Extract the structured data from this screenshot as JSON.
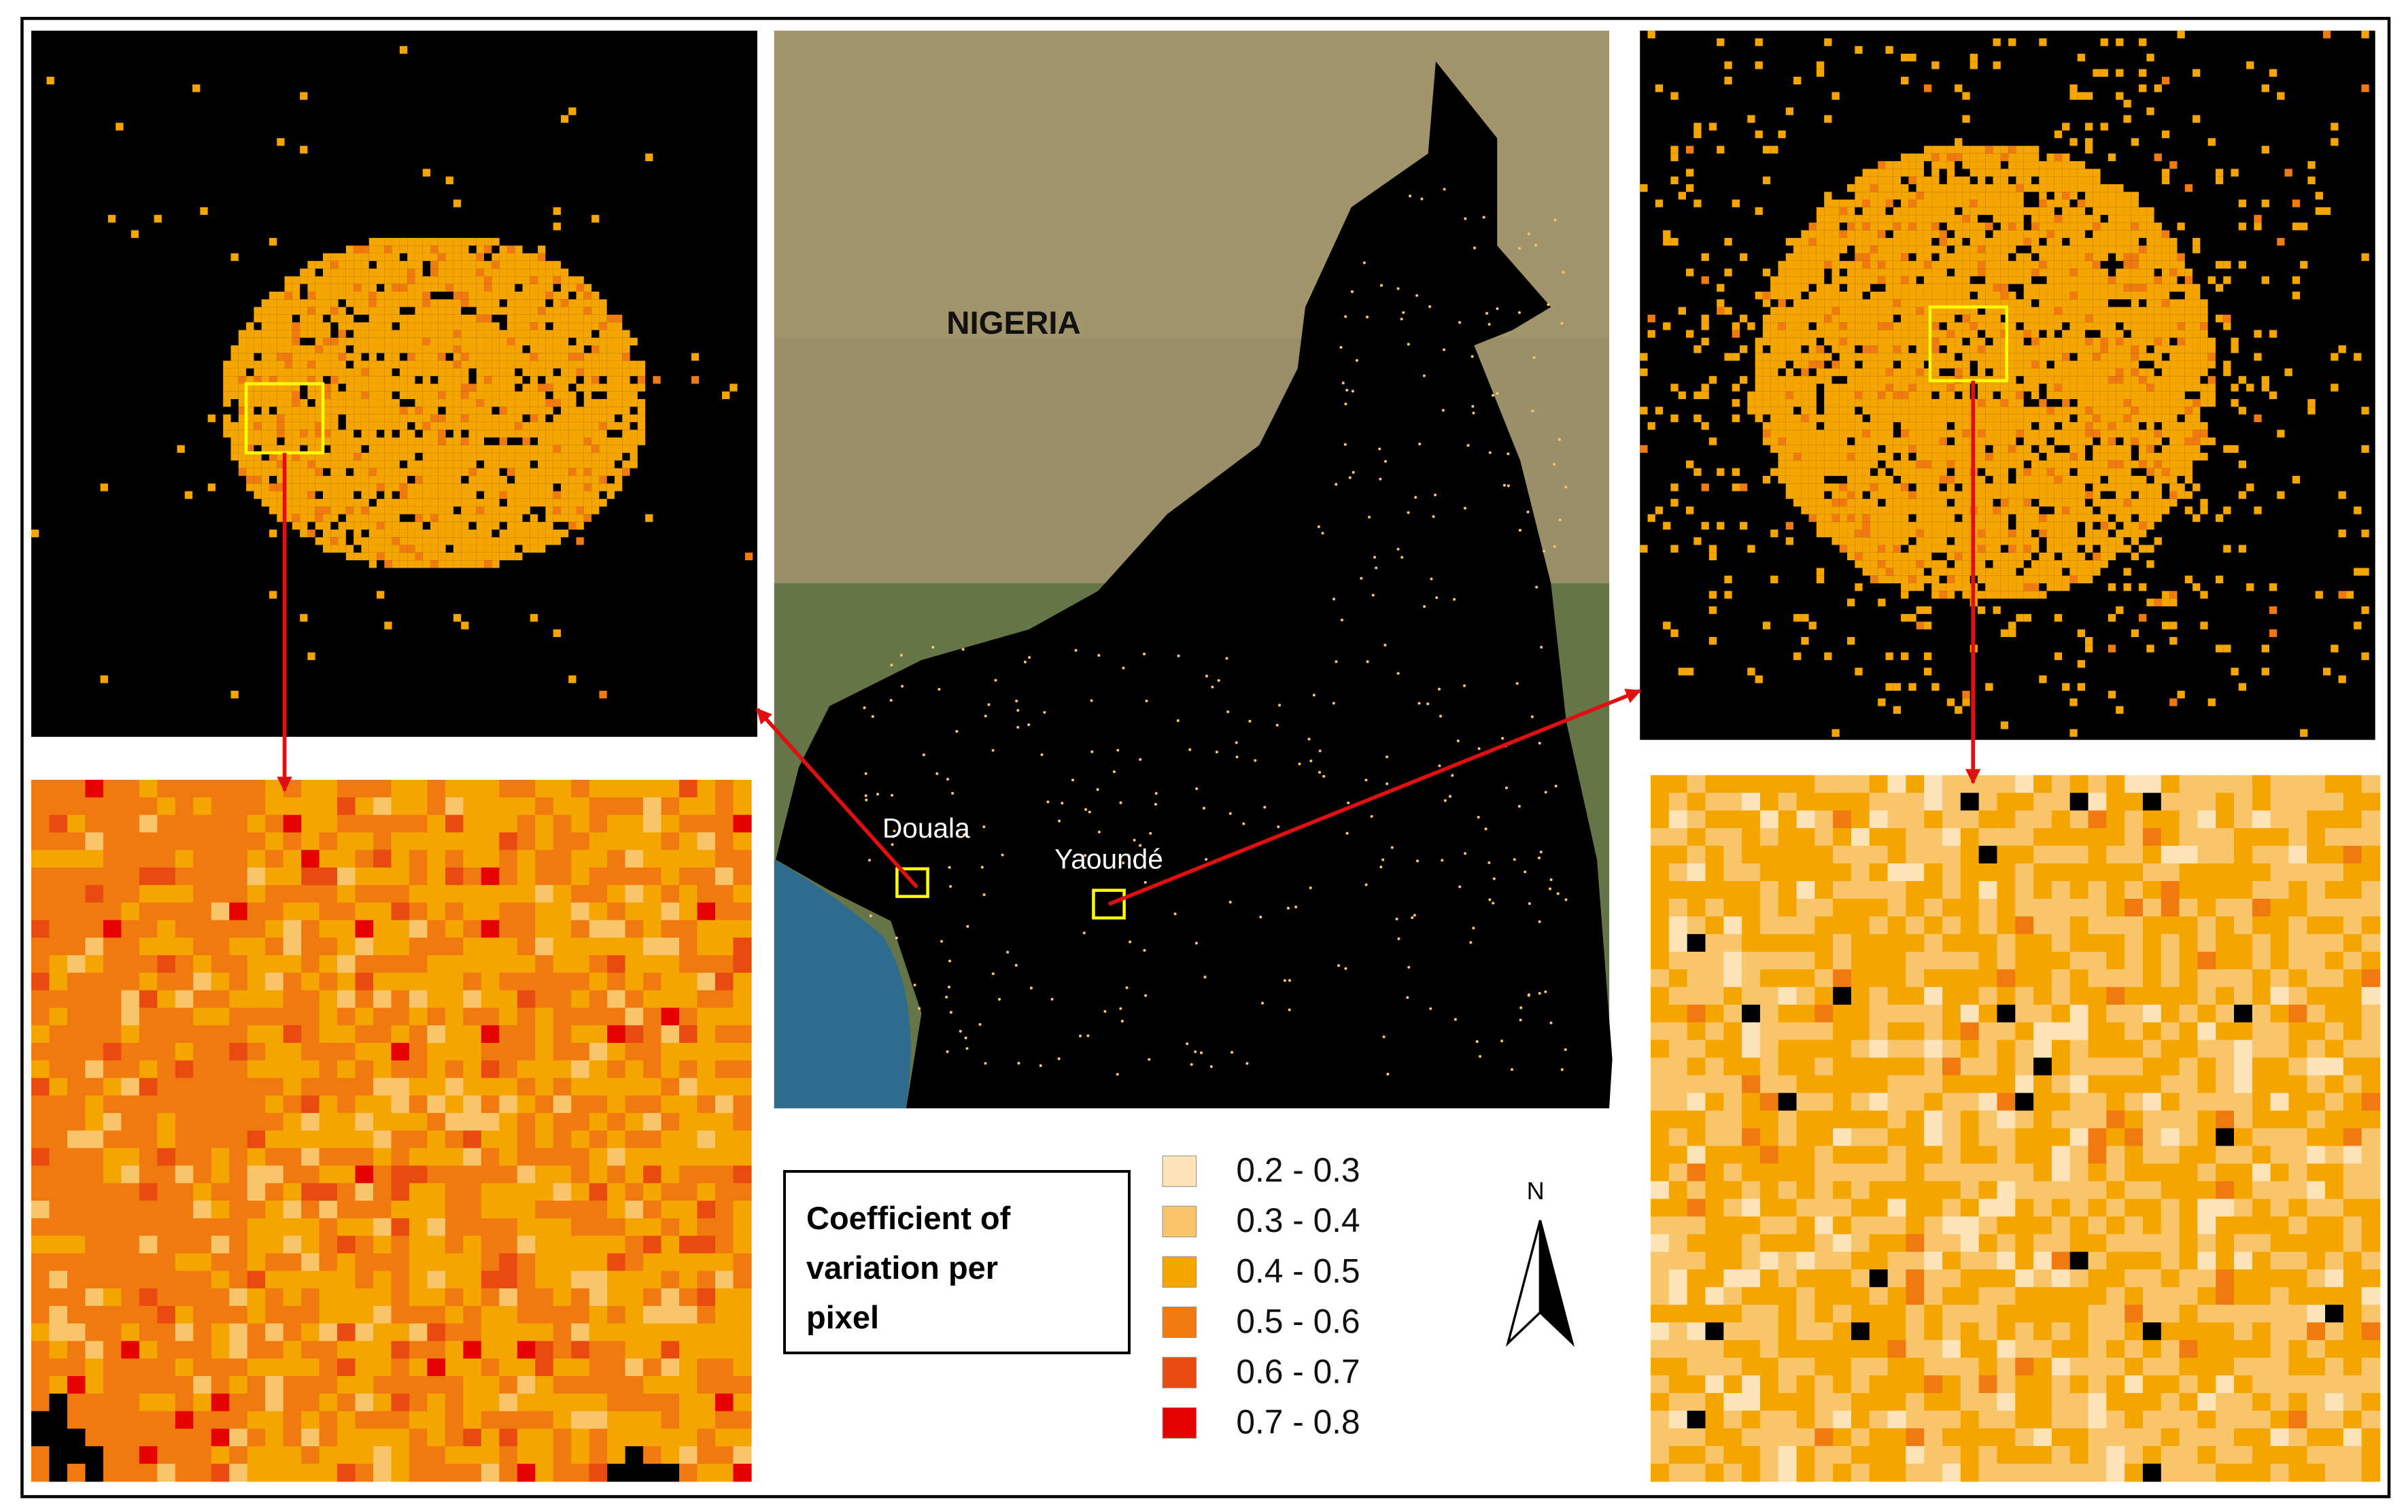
{
  "map_labels": {
    "country": "NIGERIA",
    "city_1": "Douala",
    "city_2": "Yaoundé"
  },
  "north_arrow": "N",
  "legend": {
    "title": "Coefficient of variation per pixel",
    "items": [
      {
        "label": "0.2 - 0.3",
        "color": "#fde4b8"
      },
      {
        "label": "0.3 - 0.4",
        "color": "#f9c56a"
      },
      {
        "label": "0.4 - 0.5",
        "color": "#f5a500"
      },
      {
        "label": "0.5 - 0.6",
        "color": "#f07a10"
      },
      {
        "label": "0.6 - 0.7",
        "color": "#e84a10"
      },
      {
        "label": "0.7 - 0.8",
        "color": "#e60000"
      }
    ]
  }
}
